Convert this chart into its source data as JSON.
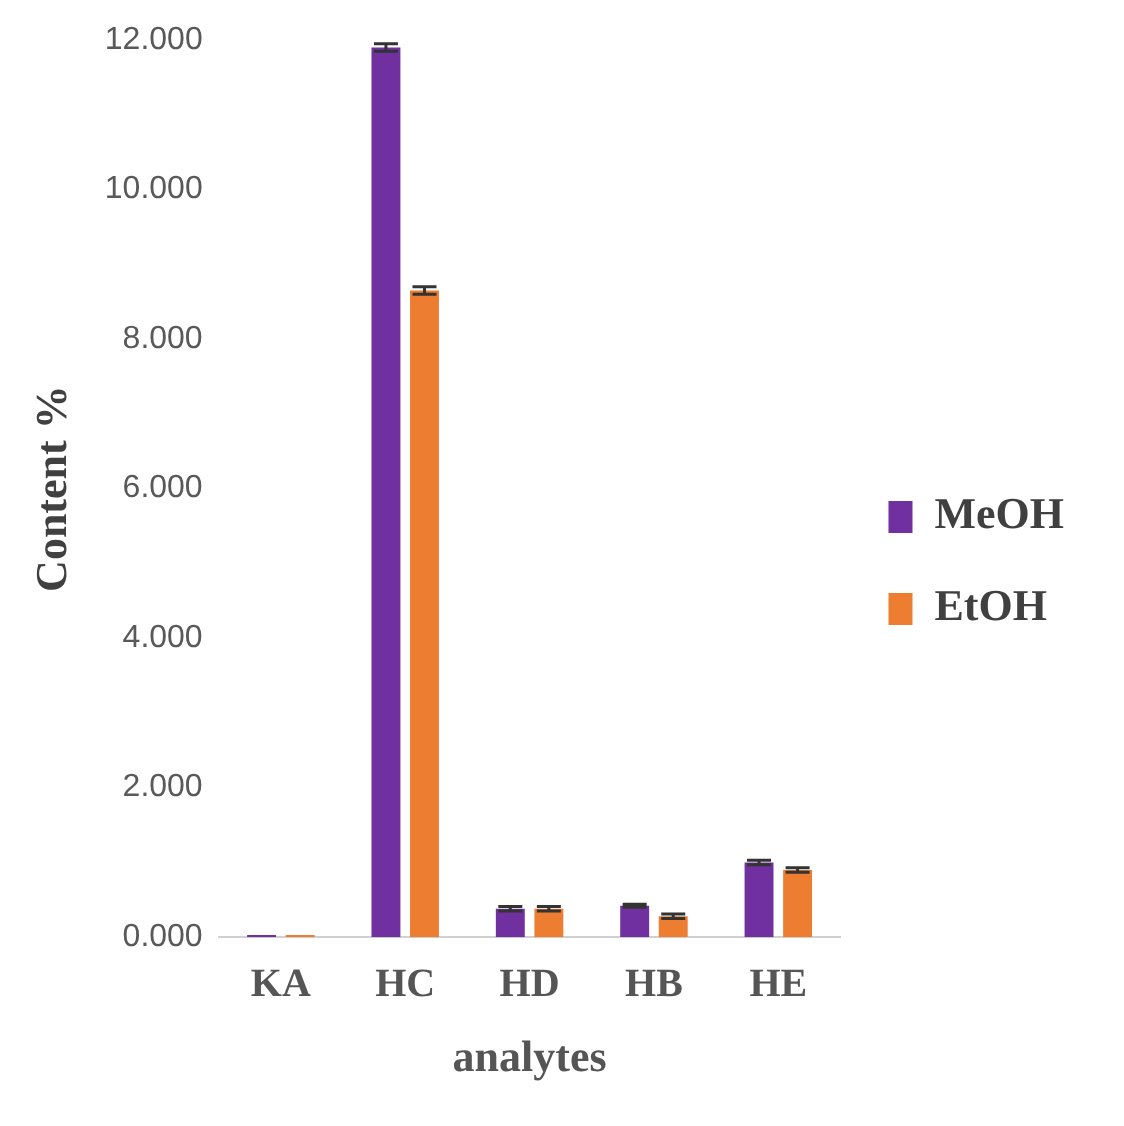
{
  "chart_data": {
    "type": "bar",
    "xlabel": "analytes",
    "ylabel": "Content %",
    "categories": [
      "KA",
      "HC",
      "HD",
      "HB",
      "HE"
    ],
    "series": [
      {
        "name": "MeOH",
        "color": "#7030a0",
        "values": [
          0.03,
          11.9,
          0.38,
          0.42,
          1.0
        ],
        "errors": [
          null,
          0.05,
          0.03,
          0.02,
          0.03
        ]
      },
      {
        "name": "EtOH",
        "color": "#ed7d31",
        "values": [
          0.03,
          8.65,
          0.38,
          0.28,
          0.9
        ],
        "errors": [
          null,
          0.05,
          0.03,
          0.03,
          0.03
        ]
      }
    ],
    "ylim": [
      0,
      12
    ],
    "yticks": [
      {
        "value": 0,
        "label": "0.000"
      },
      {
        "value": 2,
        "label": "2.000"
      },
      {
        "value": 4,
        "label": "4.000"
      },
      {
        "value": 6,
        "label": "6.000"
      },
      {
        "value": 8,
        "label": "8.000"
      },
      {
        "value": 10,
        "label": "10.000"
      },
      {
        "value": 12,
        "label": "12.000"
      }
    ],
    "grid": false,
    "legend": "right"
  }
}
